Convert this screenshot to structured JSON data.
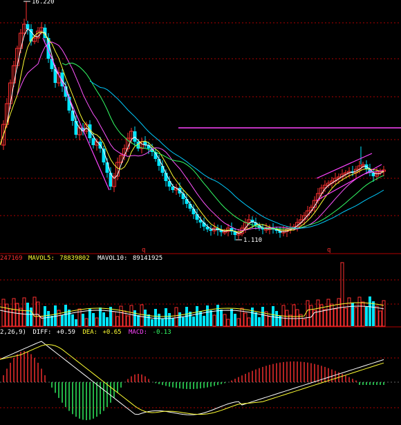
{
  "colors": {
    "bg": "#000000",
    "grid": "#b00000",
    "up": "#ff3030",
    "down": "#00e5ff",
    "ma5": "#ffffff",
    "ma10": "#ffff33",
    "ma20": "#ff55ff",
    "ma30": "#33ff66",
    "ma60": "#00ccff",
    "resistance": "#ff44ff",
    "diff": "#ffffff",
    "dea": "#ffff33"
  },
  "markers": {
    "high_label": "16.220",
    "low_label": "1.110",
    "q_left": "q",
    "q_right": "q"
  },
  "volume_header": {
    "cut_value": "247169",
    "mavol5_label": "MAVOL5:",
    "mavol5_value": "78839802",
    "mavol10_label": "MAVOL10:",
    "mavol10_value": "89141925"
  },
  "macd_header": {
    "params": "2,26,9)",
    "diff_label": "DIFF:",
    "diff_value": "+0.59",
    "dea_label": "DEA:",
    "dea_value": "+0.65",
    "macd_label": "MACD:",
    "macd_value": "-0.13"
  },
  "chart_data": {
    "type": "candlestick",
    "panels": [
      "price",
      "volume",
      "macd"
    ],
    "price_high": 16.22,
    "price_low": 1.11,
    "macd": {
      "diff": 0.59,
      "dea": 0.65,
      "macd": -0.13
    },
    "mavol5": 78839802,
    "mavol10": 89141925,
    "grid": true
  }
}
